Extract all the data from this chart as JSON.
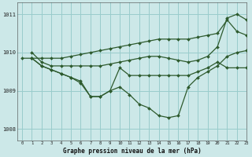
{
  "title": "Graphe pression niveau de la mer (hPa)",
  "background_color": "#cce8e8",
  "grid_color": "#99cccc",
  "line_color": "#2d5a2d",
  "xlim": [
    -0.5,
    23
  ],
  "ylim": [
    1007.7,
    1011.3
  ],
  "yticks": [
    1008,
    1009,
    1010,
    1011
  ],
  "xticks": [
    0,
    1,
    2,
    3,
    4,
    5,
    6,
    7,
    8,
    9,
    10,
    11,
    12,
    13,
    14,
    15,
    16,
    17,
    18,
    19,
    20,
    21,
    22,
    23
  ],
  "series": [
    {
      "x": [
        0,
        1,
        2,
        3,
        4,
        5,
        6,
        7,
        8,
        9,
        10,
        11,
        12,
        13,
        14,
        15,
        16,
        17,
        18,
        19,
        20,
        21,
        22,
        23
      ],
      "y": [
        1009.85,
        1009.85,
        1009.85,
        1009.85,
        1009.85,
        1009.9,
        1009.95,
        1010.0,
        1010.05,
        1010.1,
        1010.15,
        1010.2,
        1010.25,
        1010.3,
        1010.35,
        1010.35,
        1010.35,
        1010.35,
        1010.4,
        1010.45,
        1010.5,
        1010.85,
        1010.55,
        1010.45
      ]
    },
    {
      "x": [
        1,
        2,
        3,
        4,
        5,
        6,
        7,
        8,
        9,
        10,
        11,
        12,
        13,
        14,
        15,
        16,
        17,
        18,
        19,
        20,
        21,
        22,
        23
      ],
      "y": [
        1010.0,
        1009.75,
        1009.65,
        1009.65,
        1009.65,
        1009.65,
        1009.65,
        1009.65,
        1009.7,
        1009.75,
        1009.8,
        1009.85,
        1009.9,
        1009.9,
        1009.85,
        1009.8,
        1009.75,
        1009.8,
        1009.9,
        1010.15,
        1010.9,
        1011.0,
        1010.85
      ]
    },
    {
      "x": [
        1,
        2,
        3,
        4,
        5,
        6,
        7,
        8,
        9,
        10,
        11,
        12,
        13,
        14,
        15,
        16,
        17,
        18,
        19,
        20,
        21,
        22,
        23
      ],
      "y": [
        1009.85,
        1009.65,
        1009.55,
        1009.45,
        1009.35,
        1009.25,
        1008.85,
        1008.85,
        1009.0,
        1009.6,
        1009.4,
        1009.4,
        1009.4,
        1009.4,
        1009.4,
        1009.4,
        1009.4,
        1009.5,
        1009.6,
        1009.75,
        1009.6,
        1009.6,
        1009.6
      ]
    },
    {
      "x": [
        1,
        2,
        3,
        4,
        5,
        6,
        7,
        8,
        9,
        10,
        11,
        12,
        13,
        14,
        15,
        16,
        17,
        18,
        19,
        20,
        21,
        22,
        23
      ],
      "y": [
        1009.85,
        1009.65,
        1009.55,
        1009.45,
        1009.35,
        1009.2,
        1008.85,
        1008.85,
        1009.0,
        1009.1,
        1008.9,
        1008.65,
        1008.55,
        1008.35,
        1008.3,
        1008.35,
        1009.1,
        1009.35,
        1009.5,
        1009.65,
        1009.9,
        1010.0,
        1010.05
      ]
    }
  ]
}
